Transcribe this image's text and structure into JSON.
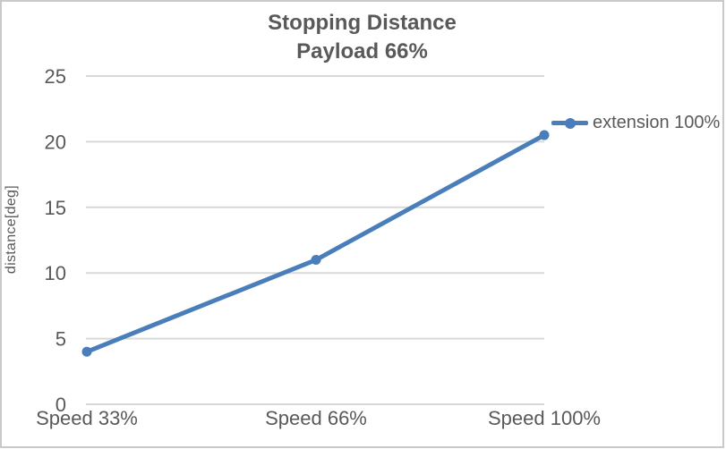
{
  "chart_data": {
    "type": "line",
    "title": "Stopping Distance",
    "subtitle": "Payload 66%",
    "ylabel": "distance[deg]",
    "xlabel": "",
    "categories": [
      "Speed 33%",
      "Speed 66%",
      "Speed 100%"
    ],
    "series": [
      {
        "name": "extension 100%",
        "values": [
          4,
          11,
          20.5
        ],
        "color": "#4A7EBB",
        "marker": "circle"
      }
    ],
    "ylim": [
      0,
      25
    ],
    "yticks": [
      0,
      5,
      10,
      15,
      20,
      25
    ],
    "grid": true,
    "legend_position": "right",
    "colors": {
      "text": "#595959",
      "gridline": "#D9D9D9",
      "frame_border": "#C9C9C9",
      "background": "#FFFFFF"
    }
  }
}
